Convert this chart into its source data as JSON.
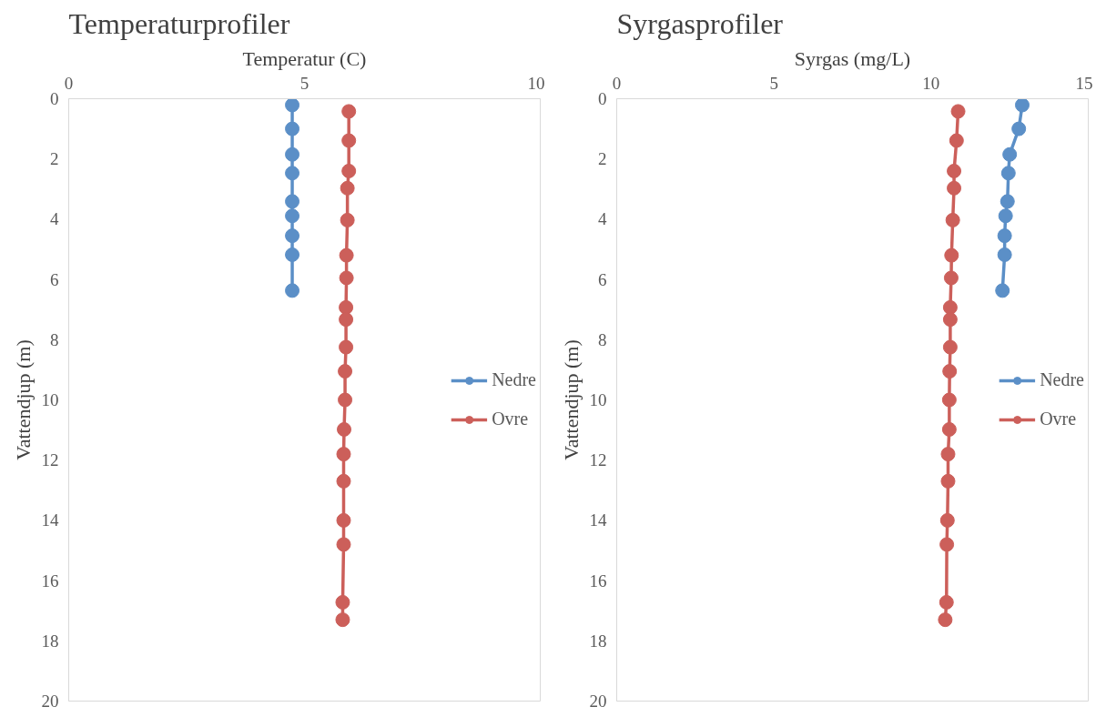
{
  "chart_data": [
    {
      "type": "line",
      "title": "Temperaturprofiler",
      "xlabel": "Temperatur (C)",
      "ylabel": "Vattendjup (m)",
      "xlim": [
        0,
        10
      ],
      "xticks": [
        0,
        5,
        10
      ],
      "ylim": [
        20,
        0
      ],
      "yticks": [
        0,
        2,
        4,
        6,
        8,
        10,
        12,
        14,
        16,
        18,
        20
      ],
      "grid": false,
      "legend": "right",
      "marker": "circle",
      "line_style": "solid",
      "series": [
        {
          "name": "Nedre",
          "color": "#5b8fc7",
          "x": [
            4.74,
            4.74,
            4.74,
            4.74,
            4.74,
            4.74,
            4.74,
            4.74,
            4.74
          ],
          "values": [
            0.21,
            1.0,
            1.85,
            2.47,
            3.41,
            3.89,
            4.55,
            5.18,
            6.37
          ]
        },
        {
          "name": "Ovre",
          "color": "#cc5f5a",
          "x": [
            5.94,
            5.94,
            5.94,
            5.91,
            5.91,
            5.89,
            5.89,
            5.88,
            5.88,
            5.88,
            5.86,
            5.86,
            5.84,
            5.83,
            5.83,
            5.83,
            5.83,
            5.81,
            5.81
          ],
          "values": [
            0.42,
            1.39,
            2.4,
            2.97,
            4.03,
            5.2,
            5.95,
            6.93,
            7.33,
            8.25,
            9.05,
            10.0,
            10.98,
            11.8,
            12.7,
            14.0,
            14.8,
            16.72,
            17.3
          ]
        }
      ]
    },
    {
      "type": "line",
      "title": "Syrgasprofiler",
      "xlabel": "Syrgas (mg/L)",
      "ylabel": "Vattendjup (m)",
      "xlim": [
        0,
        15
      ],
      "xticks": [
        0,
        5,
        10,
        15
      ],
      "ylim": [
        20,
        0
      ],
      "yticks": [
        0,
        2,
        4,
        6,
        8,
        10,
        12,
        14,
        16,
        18,
        20
      ],
      "grid": false,
      "legend": "right",
      "marker": "circle",
      "line_style": "solid",
      "series": [
        {
          "name": "Nedre",
          "color": "#5b8fc7",
          "x": [
            12.9,
            12.79,
            12.5,
            12.46,
            12.43,
            12.37,
            12.34,
            12.34,
            12.27
          ],
          "values": [
            0.21,
            1.0,
            1.85,
            2.47,
            3.41,
            3.89,
            4.55,
            5.18,
            6.37
          ]
        },
        {
          "name": "Ovre",
          "color": "#cc5f5a",
          "x": [
            10.86,
            10.81,
            10.73,
            10.73,
            10.69,
            10.65,
            10.64,
            10.61,
            10.61,
            10.61,
            10.59,
            10.58,
            10.58,
            10.54,
            10.54,
            10.52,
            10.5,
            10.49,
            10.45
          ],
          "values": [
            0.42,
            1.39,
            2.4,
            2.97,
            4.03,
            5.2,
            5.95,
            6.93,
            7.33,
            8.25,
            9.05,
            10.0,
            10.98,
            11.8,
            12.7,
            14.0,
            14.8,
            16.72,
            17.3
          ]
        }
      ]
    }
  ]
}
